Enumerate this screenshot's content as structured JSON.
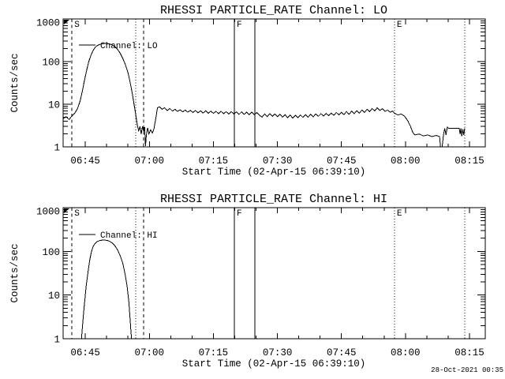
{
  "window": {
    "background": "#ffffff",
    "foreground": "#000000",
    "timestamp": "28-Oct-2021 00:35"
  },
  "plots": [
    {
      "title": "RHESSI PARTICLE_RATE Channel: LO",
      "legend": "Channel: LO"
    },
    {
      "title": "RHESSI PARTICLE_RATE Channel: HI",
      "legend": "Channel: HI"
    }
  ],
  "axes": {
    "x_label": "Start Time (02-Apr-15 06:39:10)",
    "y_label": "Counts/sec",
    "x_unit": "minutes after 06:40:00",
    "x_range": [
      -0.2,
      98.7
    ],
    "x_major_ticks": [
      {
        "t": 5,
        "label": "06:45"
      },
      {
        "t": 20,
        "label": "07:00"
      },
      {
        "t": 35,
        "label": "07:15"
      },
      {
        "t": 50,
        "label": "07:30"
      },
      {
        "t": 65,
        "label": "07:45"
      },
      {
        "t": 80,
        "label": "08:00"
      },
      {
        "t": 95,
        "label": "08:15"
      }
    ],
    "x_minor_step_min": 5,
    "y_scale": "log",
    "y_range": [
      1,
      1000
    ],
    "y_major_ticks": [
      {
        "v": 1,
        "label": "1"
      },
      {
        "v": 10,
        "label": "10"
      },
      {
        "v": 100,
        "label": "100"
      },
      {
        "v": 1000,
        "label": "1000"
      }
    ]
  },
  "events": [
    {
      "label": "S",
      "t": 1.87,
      "style": "dashed"
    },
    {
      "label": "",
      "t": 16.83,
      "style": "dotted"
    },
    {
      "label": "",
      "t": 18.68,
      "style": "dashed"
    },
    {
      "label": "F",
      "t": 39.92,
      "style": "solid"
    },
    {
      "label": "",
      "t": 44.73,
      "style": "solid"
    },
    {
      "label": "E",
      "t": 77.42,
      "style": "dotted"
    },
    {
      "label": "",
      "t": 93.87,
      "style": "dotted"
    }
  ],
  "chart_data": [
    {
      "type": "line",
      "title": "RHESSI PARTICLE_RATE Channel: LO",
      "xlabel": "Start Time (02-Apr-15 06:39:10)",
      "ylabel": "Counts/sec",
      "yscale": "log",
      "ylim": [
        1,
        1000
      ],
      "xtick_labels": [
        "06:45",
        "07:00",
        "07:15",
        "07:30",
        "07:45",
        "08:00",
        "08:15"
      ],
      "legend_position": "upper-left-inside",
      "grid": false,
      "series": [
        {
          "name": "Channel: LO",
          "x_unit": "minutes after 06:40:00",
          "points": [
            [
              -0.2,
              4.6
            ],
            [
              0.5,
              5.1
            ],
            [
              1.2,
              4.4
            ],
            [
              1.9,
              5.4
            ],
            [
              2.6,
              6.3
            ],
            [
              3.2,
              8
            ],
            [
              3.8,
              12
            ],
            [
              4.3,
              20
            ],
            [
              4.8,
              36
            ],
            [
              5.3,
              62
            ],
            [
              5.8,
              100
            ],
            [
              6.3,
              140
            ],
            [
              6.8,
              180
            ],
            [
              7.3,
              215
            ],
            [
              7.8,
              238
            ],
            [
              8.4,
              253
            ],
            [
              9.0,
              262
            ],
            [
              9.6,
              266
            ],
            [
              10.2,
              265
            ],
            [
              10.8,
              258
            ],
            [
              11.4,
              243
            ],
            [
              12.0,
              220
            ],
            [
              12.6,
              190
            ],
            [
              13.2,
              155
            ],
            [
              13.8,
              118
            ],
            [
              14.4,
              84
            ],
            [
              15.0,
              55
            ],
            [
              15.5,
              33
            ],
            [
              16.0,
              18
            ],
            [
              16.5,
              9
            ],
            [
              16.9,
              5
            ],
            [
              17.2,
              3.2
            ],
            [
              17.5,
              2.4
            ],
            [
              17.8,
              3.0
            ],
            [
              18.1,
              2.0
            ],
            [
              18.4,
              3.0
            ],
            [
              18.7,
              2.3
            ],
            [
              18.9,
              2.9
            ],
            [
              19.1,
              1.05
            ],
            [
              19.3,
              1.9
            ],
            [
              19.6,
              2.8
            ],
            [
              19.9,
              2.0
            ],
            [
              20.3,
              2.5
            ],
            [
              20.7,
              2.1
            ],
            [
              21.1,
              2.7
            ],
            [
              21.5,
              4.6
            ],
            [
              21.9,
              8.3
            ],
            [
              22.4,
              8.7
            ],
            [
              23.0,
              7.6
            ],
            [
              23.6,
              8.3
            ],
            [
              24.2,
              7.1
            ],
            [
              24.8,
              7.9
            ],
            [
              25.4,
              6.9
            ],
            [
              26.0,
              7.6
            ],
            [
              26.6,
              6.8
            ],
            [
              27.2,
              7.4
            ],
            [
              27.8,
              6.6
            ],
            [
              28.4,
              7.3
            ],
            [
              29.0,
              6.5
            ],
            [
              29.6,
              7.2
            ],
            [
              30.2,
              6.4
            ],
            [
              30.8,
              7.1
            ],
            [
              31.4,
              6.3
            ],
            [
              32.0,
              7.0
            ],
            [
              32.6,
              6.2
            ],
            [
              33.2,
              7.0
            ],
            [
              33.8,
              6.1
            ],
            [
              34.4,
              6.9
            ],
            [
              35.0,
              6.1
            ],
            [
              35.6,
              6.8
            ],
            [
              36.2,
              6.0
            ],
            [
              36.8,
              6.8
            ],
            [
              37.4,
              6.0
            ],
            [
              38.0,
              6.7
            ],
            [
              38.6,
              5.9
            ],
            [
              39.2,
              6.7
            ],
            [
              39.8,
              5.9
            ],
            [
              40.4,
              6.6
            ],
            [
              41.0,
              5.8
            ],
            [
              41.6,
              6.6
            ],
            [
              42.2,
              5.8
            ],
            [
              42.8,
              6.5
            ],
            [
              43.4,
              5.7
            ],
            [
              44.0,
              6.5
            ],
            [
              44.6,
              5.7
            ],
            [
              45.2,
              6.4
            ],
            [
              45.8,
              5.5
            ],
            [
              46.4,
              5.0
            ],
            [
              47.0,
              5.9
            ],
            [
              47.6,
              5.1
            ],
            [
              48.2,
              6.0
            ],
            [
              48.8,
              5.2
            ],
            [
              49.4,
              5.9
            ],
            [
              50.0,
              5.1
            ],
            [
              50.6,
              5.8
            ],
            [
              51.2,
              5.0
            ],
            [
              51.8,
              5.7
            ],
            [
              52.4,
              4.8
            ],
            [
              53.0,
              5.6
            ],
            [
              53.6,
              4.7
            ],
            [
              54.2,
              5.5
            ],
            [
              54.8,
              4.8
            ],
            [
              55.4,
              5.6
            ],
            [
              56.0,
              4.9
            ],
            [
              56.6,
              5.7
            ],
            [
              57.2,
              5.0
            ],
            [
              57.8,
              5.8
            ],
            [
              58.4,
              5.1
            ],
            [
              59.0,
              5.9
            ],
            [
              59.6,
              5.2
            ],
            [
              60.2,
              6.0
            ],
            [
              60.8,
              5.3
            ],
            [
              61.4,
              6.1
            ],
            [
              62.0,
              5.4
            ],
            [
              62.6,
              6.2
            ],
            [
              63.2,
              5.5
            ],
            [
              63.8,
              6.4
            ],
            [
              64.4,
              5.6
            ],
            [
              65.0,
              6.5
            ],
            [
              65.6,
              5.7
            ],
            [
              66.2,
              6.7
            ],
            [
              66.8,
              5.8
            ],
            [
              67.4,
              6.9
            ],
            [
              68.0,
              6.0
            ],
            [
              68.6,
              7.1
            ],
            [
              69.2,
              6.2
            ],
            [
              69.8,
              7.3
            ],
            [
              70.4,
              6.4
            ],
            [
              71.0,
              7.6
            ],
            [
              71.6,
              6.7
            ],
            [
              72.2,
              7.9
            ],
            [
              72.8,
              7.0
            ],
            [
              73.4,
              8.3
            ],
            [
              74.0,
              7.2
            ],
            [
              74.6,
              7.8
            ],
            [
              75.2,
              6.8
            ],
            [
              75.8,
              7.3
            ],
            [
              76.4,
              6.5
            ],
            [
              77.0,
              6.9
            ],
            [
              77.4,
              6.2
            ],
            [
              78.2,
              5.6
            ],
            [
              79.0,
              5.9
            ],
            [
              79.8,
              5.2
            ],
            [
              80.6,
              4.0
            ],
            [
              81.2,
              3.0
            ],
            [
              81.7,
              2.2
            ],
            [
              82.2,
              1.9
            ],
            [
              83.2,
              2.0
            ],
            [
              84.2,
              1.8
            ],
            [
              85.2,
              1.9
            ],
            [
              86.2,
              1.75
            ],
            [
              87.2,
              1.85
            ],
            [
              88.0,
              1.75
            ],
            [
              88.2,
              1.0
            ],
            [
              88.6,
              1.0
            ],
            [
              88.9,
              1.9
            ],
            [
              89.2,
              2.7
            ],
            [
              89.5,
              1.9
            ],
            [
              89.8,
              2.9
            ],
            [
              90.1,
              2.7
            ],
            [
              91.0,
              2.75
            ],
            [
              92.0,
              2.7
            ],
            [
              92.6,
              2.75
            ],
            [
              92.8,
              2.0
            ],
            [
              93.0,
              2.7
            ],
            [
              93.2,
              1.8
            ],
            [
              93.45,
              2.6
            ],
            [
              93.65,
              1.9
            ],
            [
              93.88,
              2.7
            ]
          ]
        }
      ]
    },
    {
      "type": "line",
      "title": "RHESSI PARTICLE_RATE Channel: HI",
      "xlabel": "Start Time (02-Apr-15 06:39:10)",
      "ylabel": "Counts/sec",
      "yscale": "log",
      "ylim": [
        1,
        1000
      ],
      "xtick_labels": [
        "06:45",
        "07:00",
        "07:15",
        "07:30",
        "07:45",
        "08:00",
        "08:15"
      ],
      "legend_position": "upper-left-inside",
      "grid": false,
      "series": [
        {
          "name": "Channel: HI",
          "x_unit": "minutes after 06:40:00",
          "points": [
            [
              4.1,
              1.0
            ],
            [
              4.35,
              2.0
            ],
            [
              4.6,
              4.0
            ],
            [
              4.9,
              8
            ],
            [
              5.2,
              16
            ],
            [
              5.6,
              32
            ],
            [
              6.0,
              60
            ],
            [
              6.4,
              95
            ],
            [
              6.8,
              128
            ],
            [
              7.3,
              152
            ],
            [
              7.8,
              168
            ],
            [
              8.4,
              177
            ],
            [
              9.0,
              181
            ],
            [
              9.6,
              181
            ],
            [
              10.2,
              177
            ],
            [
              10.8,
              168
            ],
            [
              11.4,
              153
            ],
            [
              12.0,
              132
            ],
            [
              12.6,
              106
            ],
            [
              13.2,
              78
            ],
            [
              13.8,
              52
            ],
            [
              14.3,
              31
            ],
            [
              14.8,
              16
            ],
            [
              15.2,
              7
            ],
            [
              15.5,
              2.8
            ],
            [
              15.7,
              1.4
            ],
            [
              15.85,
              1.0
            ]
          ]
        }
      ]
    }
  ]
}
